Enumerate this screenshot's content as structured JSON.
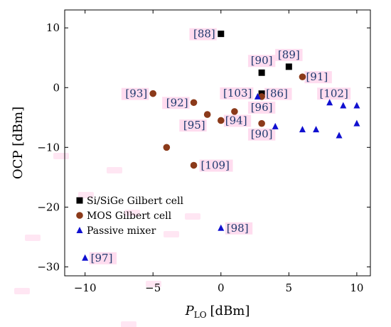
{
  "chart_data": {
    "type": "scatter",
    "title": "",
    "xlabel": "P",
    "xlabel_sub": "LO",
    "xlabel_unit": "[dBm]",
    "ylabel": "OCP [dBm]",
    "xlim": [
      -11.5,
      11
    ],
    "ylim": [
      -31.5,
      13
    ],
    "xticks": [
      -10,
      -5,
      0,
      5,
      10
    ],
    "yticks": [
      -30,
      -20,
      -10,
      0,
      10
    ],
    "grid": false,
    "legend_position": "bottom-left",
    "colors": {
      "sige": "#000000",
      "mos": "#8b3a1a",
      "passive": "#1010d0",
      "ref_label_text": "#1e3a6e",
      "ref_label_bg": "#ffd0ea"
    },
    "series": [
      {
        "name": "Si/SiGe Gilbert cell",
        "marker": "square",
        "points": [
          {
            "x": 0,
            "y": 9,
            "label": "[88]"
          },
          {
            "x": 3,
            "y": 2.5,
            "label": "[90]"
          },
          {
            "x": 5,
            "y": 3.5,
            "label": "[89]"
          },
          {
            "x": 3,
            "y": -1,
            "label": "[86]"
          }
        ]
      },
      {
        "name": "MOS Gilbert cell",
        "marker": "circle",
        "points": [
          {
            "x": 6,
            "y": 1.8,
            "label": "[91]"
          },
          {
            "x": -5,
            "y": -1,
            "label": "[93]"
          },
          {
            "x": -2,
            "y": -2.5,
            "label": "[92]"
          },
          {
            "x": -1,
            "y": -4.5,
            "label": "[95]"
          },
          {
            "x": 0,
            "y": -5.5,
            "label": "[94]"
          },
          {
            "x": 1,
            "y": -4
          },
          {
            "x": 3,
            "y": -1.5,
            "label": "[96]"
          },
          {
            "x": 3,
            "y": -6,
            "label": "[90]"
          },
          {
            "x": -4,
            "y": -10
          },
          {
            "x": -2,
            "y": -13,
            "label": "[109]"
          }
        ]
      },
      {
        "name": "Passive mixer",
        "marker": "triangle",
        "points": [
          {
            "x": 2.7,
            "y": -1.5,
            "label": "[103]"
          },
          {
            "x": 4,
            "y": -6.5
          },
          {
            "x": 6,
            "y": -7
          },
          {
            "x": 7,
            "y": -7
          },
          {
            "x": 8,
            "y": -2.5,
            "label": "[102]"
          },
          {
            "x": 9,
            "y": -3
          },
          {
            "x": 10,
            "y": -3
          },
          {
            "x": 8.7,
            "y": -8
          },
          {
            "x": 10,
            "y": -6
          },
          {
            "x": 0,
            "y": -23.5,
            "label": "[98]"
          },
          {
            "x": -10,
            "y": -28.5,
            "label": "[97]"
          }
        ]
      }
    ]
  }
}
